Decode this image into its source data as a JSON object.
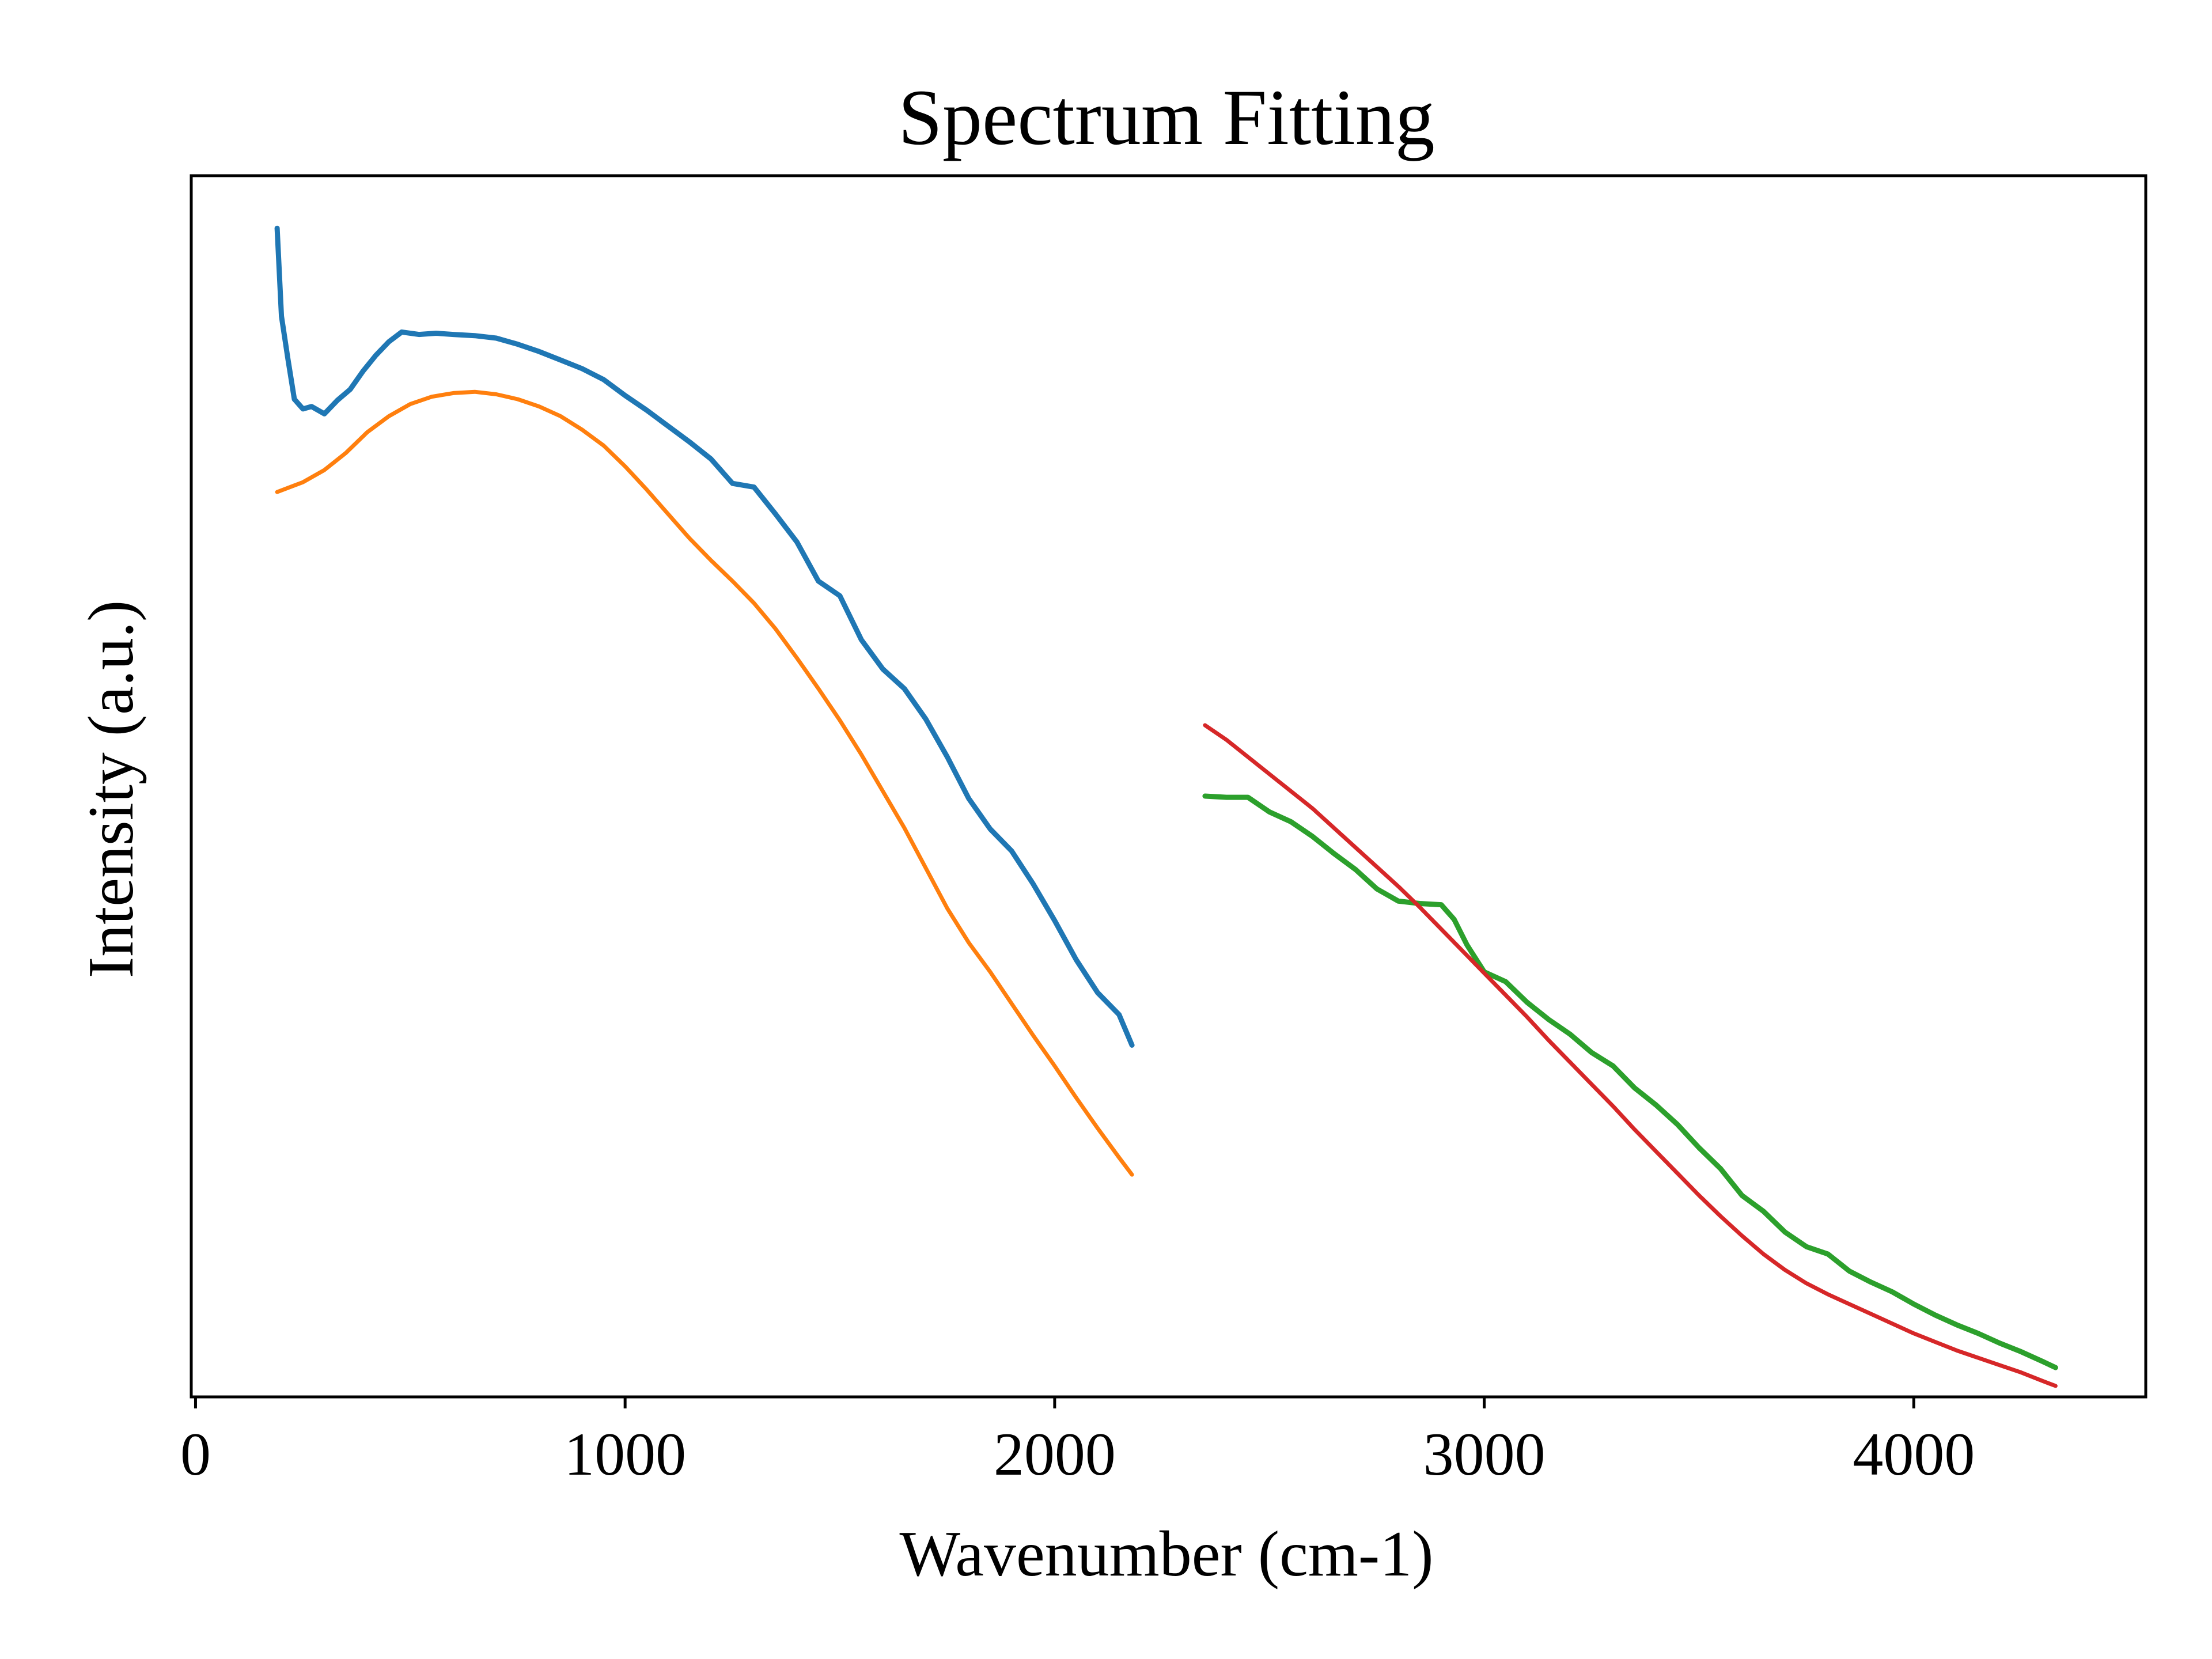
{
  "chart_data": {
    "type": "line",
    "title": "Spectrum Fitting",
    "xlabel": "Wavenumber (cm-1)",
    "ylabel": "Intensity (a.u.)",
    "xlim": [
      -10,
      4540
    ],
    "ylim": [
      0,
      100
    ],
    "x_ticks": [
      0,
      1000,
      2000,
      3000,
      4000
    ],
    "x_tick_labels": [
      "0",
      "1000",
      "2000",
      "3000",
      "4000"
    ],
    "y_ticks_shown": false,
    "grid": false,
    "legend": "none",
    "series": [
      {
        "color": "#1f77b4",
        "role": "measured",
        "x": [
          190,
          200,
          215,
          230,
          250,
          270,
          300,
          330,
          360,
          390,
          420,
          450,
          480,
          520,
          560,
          600,
          650,
          700,
          750,
          800,
          850,
          900,
          950,
          1000,
          1050,
          1100,
          1150,
          1200,
          1250,
          1300,
          1350,
          1400,
          1450,
          1500,
          1550,
          1600,
          1650,
          1700,
          1750,
          1800,
          1850,
          1900,
          1950,
          2000,
          2050,
          2100,
          2150,
          2180
        ],
        "y": [
          95.7,
          88.5,
          85.0,
          81.7,
          80.9,
          81.1,
          80.5,
          81.6,
          82.5,
          84.0,
          85.3,
          86.4,
          87.2,
          87.0,
          87.1,
          87.0,
          86.9,
          86.7,
          86.2,
          85.6,
          84.9,
          84.2,
          83.3,
          82.0,
          80.8,
          79.5,
          78.2,
          76.8,
          74.8,
          74.5,
          72.3,
          70.0,
          66.8,
          65.6,
          62.0,
          59.6,
          58.0,
          55.5,
          52.4,
          49.0,
          46.5,
          44.7,
          42.0,
          39.0,
          35.8,
          33.1,
          31.3,
          28.8
        ]
      },
      {
        "color": "#ff7f0e",
        "role": "fit",
        "x": [
          190,
          250,
          300,
          350,
          400,
          450,
          500,
          550,
          600,
          650,
          700,
          750,
          800,
          850,
          900,
          950,
          1000,
          1050,
          1100,
          1150,
          1200,
          1250,
          1300,
          1350,
          1400,
          1450,
          1500,
          1550,
          1600,
          1650,
          1700,
          1750,
          1800,
          1850,
          1900,
          1950,
          2000,
          2050,
          2100,
          2150,
          2180
        ],
        "y": [
          74.1,
          74.9,
          75.9,
          77.3,
          79.0,
          80.3,
          81.3,
          81.9,
          82.2,
          82.3,
          82.1,
          81.7,
          81.1,
          80.3,
          79.2,
          77.9,
          76.2,
          74.3,
          72.3,
          70.3,
          68.5,
          66.8,
          65.0,
          62.9,
          60.5,
          58.0,
          55.4,
          52.6,
          49.6,
          46.6,
          43.3,
          40.0,
          37.2,
          34.8,
          32.2,
          29.6,
          27.1,
          24.5,
          22.0,
          19.6,
          18.2
        ]
      },
      {
        "color": "#2ca02c",
        "role": "measured",
        "x": [
          2350,
          2400,
          2450,
          2500,
          2550,
          2600,
          2650,
          2700,
          2750,
          2800,
          2850,
          2900,
          2930,
          2960,
          3000,
          3050,
          3100,
          3150,
          3200,
          3250,
          3300,
          3350,
          3400,
          3450,
          3500,
          3550,
          3600,
          3650,
          3700,
          3750,
          3800,
          3850,
          3900,
          3950,
          4000,
          4050,
          4100,
          4150,
          4200,
          4250,
          4300,
          4330
        ],
        "y": [
          49.2,
          49.1,
          49.1,
          47.9,
          47.1,
          45.9,
          44.5,
          43.2,
          41.6,
          40.6,
          40.4,
          40.3,
          39.1,
          37.0,
          34.8,
          34.0,
          32.3,
          30.9,
          29.7,
          28.2,
          27.1,
          25.3,
          23.9,
          22.3,
          20.4,
          18.7,
          16.5,
          15.2,
          13.5,
          12.3,
          11.7,
          10.3,
          9.4,
          8.6,
          7.6,
          6.7,
          5.9,
          5.2,
          4.4,
          3.7,
          2.9,
          2.4
        ]
      },
      {
        "color": "#d62728",
        "role": "fit",
        "x": [
          2350,
          2400,
          2450,
          2500,
          2550,
          2600,
          2650,
          2700,
          2750,
          2800,
          2850,
          2900,
          2950,
          3000,
          3050,
          3100,
          3150,
          3200,
          3250,
          3300,
          3350,
          3400,
          3450,
          3500,
          3550,
          3600,
          3650,
          3700,
          3750,
          3800,
          3850,
          3900,
          3950,
          4000,
          4050,
          4100,
          4150,
          4200,
          4250,
          4300,
          4330
        ],
        "y": [
          55.0,
          53.8,
          52.4,
          51.0,
          49.6,
          48.2,
          46.6,
          45.0,
          43.4,
          41.8,
          40.1,
          38.3,
          36.5,
          34.7,
          32.9,
          31.1,
          29.2,
          27.4,
          25.6,
          23.8,
          21.9,
          20.1,
          18.3,
          16.5,
          14.8,
          13.2,
          11.7,
          10.4,
          9.3,
          8.4,
          7.6,
          6.8,
          6.0,
          5.2,
          4.5,
          3.8,
          3.2,
          2.6,
          2.0,
          1.3,
          0.9
        ]
      }
    ]
  }
}
